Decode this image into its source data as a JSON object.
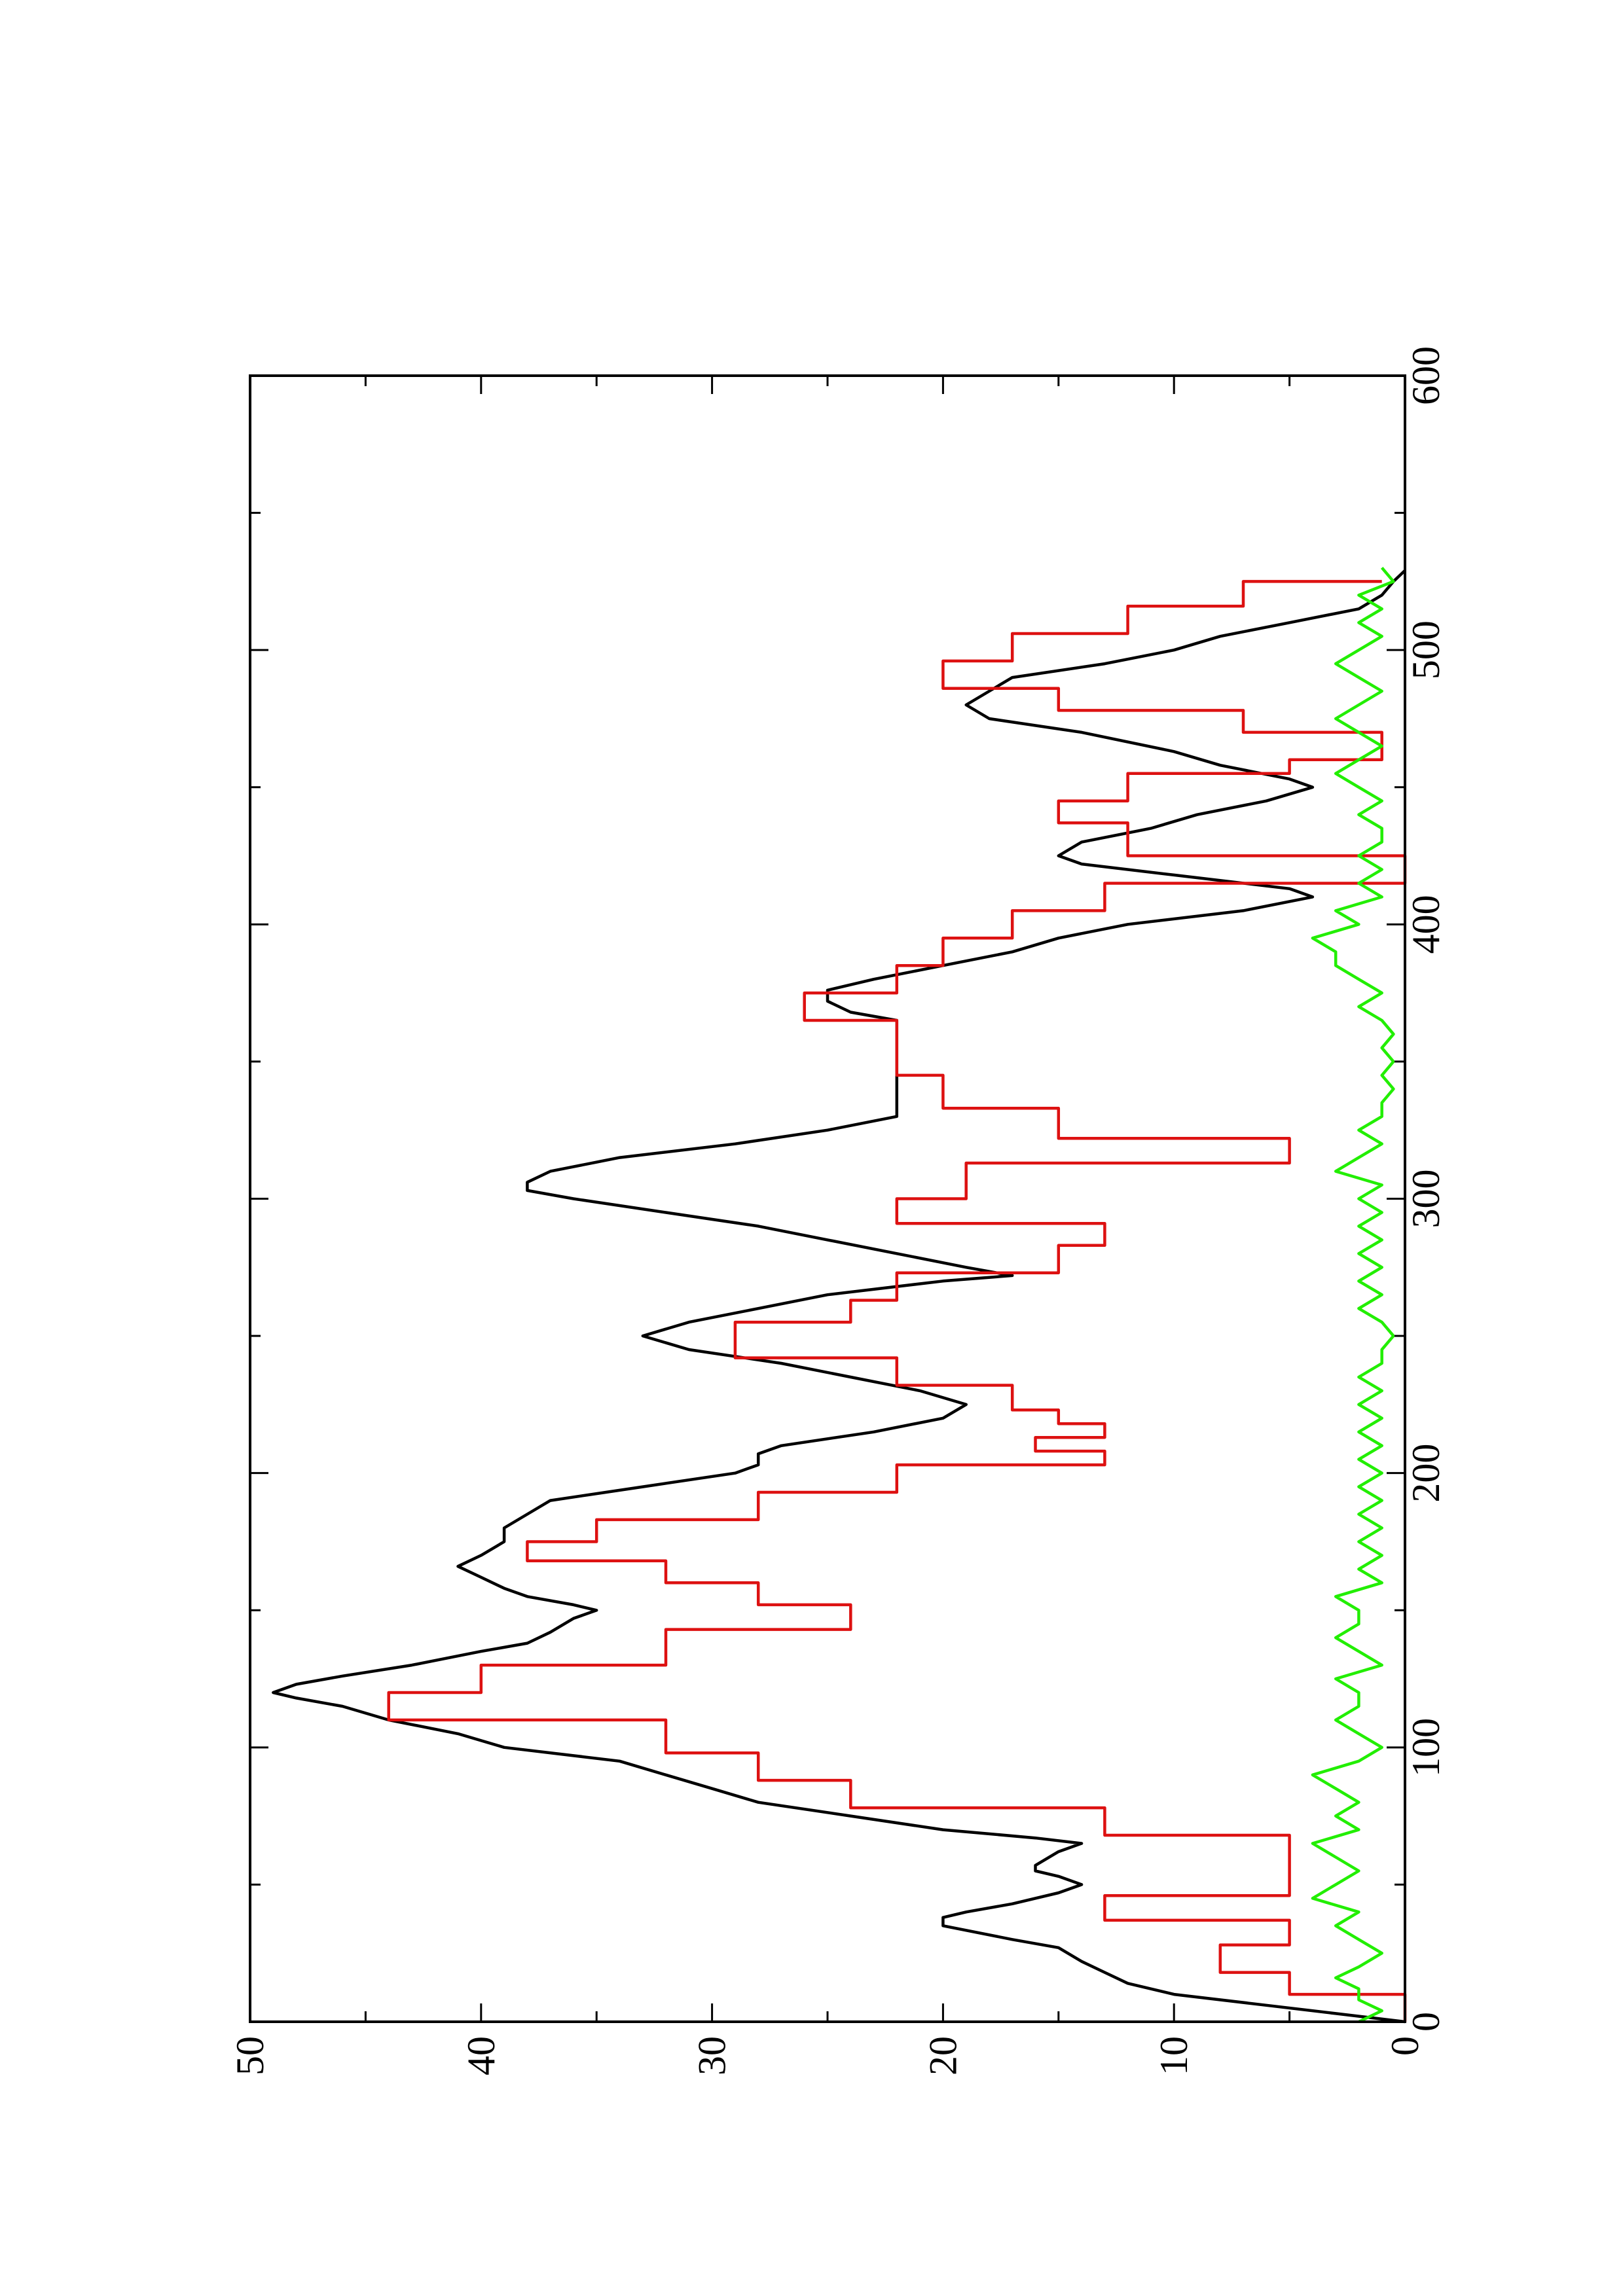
{
  "chart_data": {
    "type": "line",
    "orientation": "rotated-90-ccw",
    "title": "",
    "xlabel": "",
    "ylabel": "",
    "xlim": [
      0,
      600
    ],
    "ylim": [
      0,
      50
    ],
    "x_ticks": [
      0,
      100,
      200,
      300,
      400,
      500,
      600
    ],
    "y_ticks": [
      0,
      10,
      20,
      30,
      40,
      50
    ],
    "x_tick_labels": [
      "0",
      "100",
      "200",
      "300",
      "400",
      "500",
      "600"
    ],
    "y_tick_labels": [
      "0",
      "10",
      "20",
      "30",
      "40",
      "50"
    ],
    "grid": false,
    "legend": "none",
    "series": [
      {
        "color": "#000000",
        "step": false,
        "x": [
          0,
          3,
          6,
          10,
          14,
          18,
          22,
          27,
          30,
          35,
          38,
          40,
          43,
          47,
          50,
          53,
          55,
          57,
          62,
          65,
          67,
          70,
          75,
          80,
          85,
          90,
          95,
          100,
          105,
          110,
          115,
          118,
          120,
          123,
          126,
          130,
          135,
          138,
          142,
          147,
          150,
          152,
          155,
          158,
          162,
          166,
          170,
          175,
          180,
          185,
          190,
          195,
          200,
          203,
          207,
          210,
          215,
          220,
          225,
          230,
          235,
          240,
          245,
          250,
          255,
          260,
          265,
          270,
          272,
          275,
          280,
          285,
          290,
          295,
          300,
          303,
          306,
          310,
          315,
          320,
          325,
          330,
          335,
          340,
          345,
          350,
          355,
          360,
          365,
          368,
          372,
          376,
          380,
          385,
          390,
          395,
          400,
          405,
          410,
          413,
          418,
          422,
          425,
          430,
          435,
          440,
          445,
          450,
          453,
          458,
          463,
          470,
          475,
          480,
          485,
          490,
          495,
          500,
          505,
          510,
          515,
          520,
          525,
          529
        ],
        "y": [
          0,
          3,
          6,
          10,
          12,
          13,
          14,
          15,
          17,
          20,
          20,
          19,
          17,
          15,
          14,
          15,
          16,
          16,
          15,
          14,
          16,
          20,
          24,
          28,
          30,
          32,
          34,
          39,
          41,
          44,
          46,
          48,
          49,
          48,
          46,
          43,
          40,
          38,
          37,
          36,
          35,
          36,
          38,
          39,
          40,
          41,
          40,
          39,
          39,
          38,
          37,
          33,
          29,
          28,
          28,
          27,
          23,
          20,
          19,
          21,
          24,
          27,
          31,
          33,
          31,
          28,
          25,
          20,
          17,
          19,
          22,
          25,
          28,
          32,
          36,
          38,
          38,
          37,
          34,
          29,
          25,
          22,
          22,
          22,
          22,
          22,
          22,
          22,
          22,
          24,
          25,
          25,
          23,
          20,
          17,
          15,
          12,
          7,
          4,
          5,
          10,
          14,
          15,
          14,
          11,
          9,
          6,
          4,
          5,
          8,
          10,
          14,
          18,
          19,
          18,
          17,
          13,
          10,
          8,
          5,
          2,
          1,
          0.5,
          0
        ]
      },
      {
        "color": "#dd1111",
        "step": true,
        "x": [
          0,
          10,
          18,
          28,
          37,
          46,
          57,
          68,
          78,
          88,
          98,
          110,
          120,
          130,
          143,
          152,
          160,
          168,
          175,
          183,
          193,
          203,
          208,
          213,
          218,
          223,
          232,
          242,
          255,
          263,
          273,
          283,
          291,
          300,
          313,
          322,
          333,
          345,
          355,
          365,
          375,
          385,
          395,
          405,
          415,
          425,
          437,
          445,
          455,
          460,
          470,
          478,
          486,
          496,
          506,
          516,
          525
        ],
        "y": [
          0,
          5,
          8,
          5,
          13,
          5,
          5,
          13,
          24,
          28,
          32,
          44,
          40,
          32,
          24,
          28,
          32,
          38,
          35,
          28,
          22,
          13,
          16,
          13,
          15,
          17,
          22,
          29,
          24,
          22,
          15,
          13,
          22,
          19,
          5,
          15,
          20,
          22,
          22,
          26,
          22,
          20,
          17,
          13,
          0,
          12,
          15,
          12,
          5,
          1,
          7,
          15,
          20,
          17,
          12,
          7,
          1
        ]
      },
      {
        "color": "#22ee00",
        "step": false,
        "x": [
          0,
          4,
          8,
          12,
          16,
          20,
          25,
          30,
          35,
          40,
          45,
          50,
          55,
          60,
          65,
          70,
          75,
          80,
          85,
          90,
          95,
          100,
          105,
          110,
          115,
          120,
          125,
          130,
          135,
          140,
          145,
          150,
          155,
          160,
          165,
          170,
          175,
          180,
          185,
          190,
          195,
          200,
          205,
          210,
          215,
          220,
          225,
          230,
          235,
          240,
          245,
          250,
          255,
          260,
          265,
          270,
          275,
          280,
          285,
          290,
          295,
          300,
          305,
          310,
          315,
          320,
          325,
          330,
          335,
          340,
          345,
          350,
          355,
          360,
          365,
          370,
          375,
          380,
          385,
          390,
          395,
          400,
          405,
          410,
          415,
          420,
          425,
          430,
          435,
          440,
          445,
          450,
          455,
          460,
          465,
          470,
          475,
          480,
          485,
          490,
          495,
          500,
          505,
          510,
          515,
          520,
          525,
          530
        ],
        "y": [
          2,
          1,
          2,
          2,
          3,
          2,
          1,
          2,
          3,
          2,
          4,
          3,
          2,
          3,
          4,
          2,
          3,
          2,
          3,
          4,
          2,
          1,
          2,
          3,
          2,
          2,
          3,
          1,
          2,
          3,
          2,
          2,
          3,
          1,
          2,
          1,
          2,
          1,
          2,
          1,
          2,
          1,
          2,
          1,
          2,
          1,
          2,
          1,
          2,
          1,
          1,
          0.5,
          1,
          2,
          1,
          2,
          1,
          2,
          1,
          2,
          1,
          2,
          1,
          3,
          2,
          1,
          2,
          1,
          1,
          0.5,
          1,
          0.5,
          1,
          0.5,
          1,
          2,
          1,
          2,
          3,
          3,
          4,
          2,
          3,
          1,
          2,
          1,
          2,
          1,
          1,
          2,
          1,
          2,
          3,
          2,
          1,
          2,
          3,
          2,
          1,
          2,
          3,
          2,
          1,
          2,
          1,
          2,
          0.5,
          1
        ]
      }
    ]
  }
}
